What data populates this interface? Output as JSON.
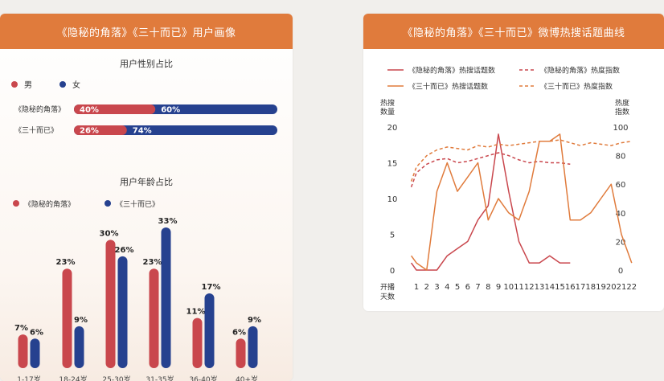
{
  "colors": {
    "red": "#c9474d",
    "blue": "#26418f",
    "orange": "#e07b3c",
    "header_bg": "#e07b3c"
  },
  "left_panel": {
    "title": "《隐秘的角落》《三十而已》用户画像",
    "gender": {
      "title": "用户性别占比",
      "legend": [
        {
          "label": "男",
          "color": "#c9474d"
        },
        {
          "label": "女",
          "color": "#26418f"
        }
      ],
      "rows": [
        {
          "show": "《隐秘的角落》",
          "male_pct": 40,
          "female_pct": 60,
          "male_label": "40%",
          "female_label": "60%"
        },
        {
          "show": "《三十而已》",
          "male_pct": 26,
          "female_pct": 74,
          "male_label": "26%",
          "female_label": "74%"
        }
      ]
    },
    "age": {
      "title": "用户年龄占比",
      "legend": [
        {
          "label": "《隐秘的角落》",
          "color": "#c9474d"
        },
        {
          "label": "《三十而已》",
          "color": "#26418f"
        }
      ]
    }
  },
  "right_panel": {
    "title": "《隐秘的角落》《三十而已》微博热搜话题曲线",
    "legend": [
      {
        "label": "《隐秘的角落》热搜话题数",
        "color": "#c9474d",
        "dash": false
      },
      {
        "label": "《隐秘的角落》热度指数",
        "color": "#c9474d",
        "dash": true
      },
      {
        "label": "《三十而已》热搜话题数",
        "color": "#e07b3c",
        "dash": false
      },
      {
        "label": "《三十而已》热度指数",
        "color": "#e07b3c",
        "dash": true
      }
    ],
    "y_left_title": [
      "热搜",
      "数量"
    ],
    "y_right_title": [
      "热度",
      "指数"
    ],
    "x_title": [
      "开播",
      "天数"
    ]
  },
  "chart_data": [
    {
      "type": "bar",
      "title": "用户年龄占比",
      "categories": [
        "1-17岁",
        "18-24岁",
        "25-30岁",
        "31-35岁",
        "36-40岁",
        "40+岁"
      ],
      "series": [
        {
          "name": "《隐秘的角落》",
          "values": [
            7,
            23,
            30,
            23,
            11,
            6
          ],
          "color": "#c9474d"
        },
        {
          "name": "《三十而已》",
          "values": [
            6,
            9,
            26,
            33,
            17,
            9
          ],
          "color": "#26418f"
        }
      ],
      "value_suffix": "%",
      "ylim": [
        0,
        35
      ]
    },
    {
      "type": "line",
      "x": [
        1,
        2,
        3,
        4,
        5,
        6,
        7,
        8,
        9,
        10,
        11,
        12,
        13,
        14,
        15,
        16,
        17,
        18,
        19,
        20,
        21,
        22
      ],
      "ylim_left": [
        0,
        20
      ],
      "yticks_left": [
        0,
        5,
        10,
        15,
        20
      ],
      "ylim_right": [
        0,
        100
      ],
      "yticks_right": [
        0,
        20,
        40,
        60,
        80,
        100
      ],
      "series": [
        {
          "name": "《隐秘的角落》热搜话题数",
          "axis": "left",
          "dash": false,
          "color": "#c9474d",
          "x": [
            0.5,
            1,
            2,
            3,
            4,
            5,
            6,
            7,
            8,
            9,
            10,
            11,
            12,
            13,
            14,
            15,
            16
          ],
          "values": [
            1,
            0,
            0,
            0,
            2,
            3,
            4,
            7,
            9,
            19,
            11,
            4,
            1,
            1,
            2,
            1,
            1
          ]
        },
        {
          "name": "《隐秘的角落》热度指数",
          "axis": "right",
          "dash": true,
          "color": "#c9474d",
          "x": [
            0.5,
            1,
            2,
            3,
            4,
            5,
            6,
            7,
            8,
            9,
            10,
            11,
            12,
            13,
            14,
            15,
            16
          ],
          "values": [
            58,
            68,
            74,
            77,
            78,
            75,
            76,
            78,
            80,
            82,
            80,
            77,
            75,
            76,
            75,
            75,
            74
          ]
        },
        {
          "name": "《三十而已》热搜话题数",
          "axis": "left",
          "dash": false,
          "color": "#e07b3c",
          "x": [
            0.5,
            1,
            2,
            3,
            4,
            5,
            6,
            7,
            8,
            9,
            10,
            11,
            12,
            13,
            14,
            15,
            16,
            17,
            18,
            19,
            20,
            21,
            22
          ],
          "values": [
            2,
            1,
            0,
            11,
            15,
            11,
            13,
            15,
            7,
            10,
            8,
            7,
            11,
            18,
            18,
            19,
            7,
            7,
            8,
            10,
            12,
            5,
            1
          ]
        },
        {
          "name": "《三十而已》热度指数",
          "axis": "right",
          "dash": true,
          "color": "#e07b3c",
          "x": [
            0.5,
            1,
            2,
            3,
            4,
            5,
            6,
            7,
            8,
            9,
            10,
            11,
            12,
            13,
            14,
            15,
            16,
            17,
            18,
            19,
            20,
            21,
            22
          ],
          "values": [
            62,
            72,
            80,
            84,
            86,
            85,
            84,
            87,
            86,
            88,
            87,
            88,
            89,
            90,
            90,
            91,
            89,
            87,
            89,
            88,
            87,
            89,
            90
          ]
        }
      ]
    }
  ]
}
